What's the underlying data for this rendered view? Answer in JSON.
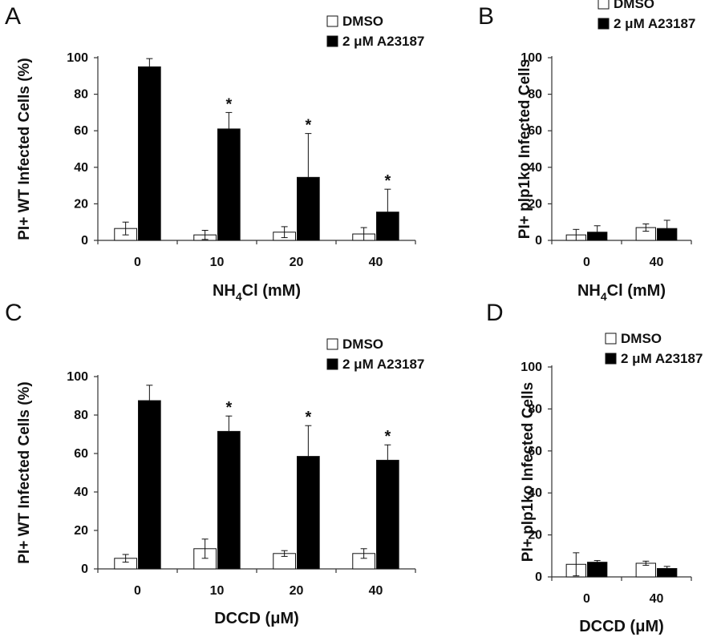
{
  "colors": {
    "dmso": "#ffffff",
    "a23187": "#000000",
    "axis": "#333333"
  },
  "chart_data": [
    {
      "panel": "A",
      "type": "bar",
      "categories": [
        "0",
        "10",
        "20",
        "40"
      ],
      "series": [
        {
          "name": "DMSO",
          "values": [
            6.5,
            3,
            4.5,
            3.5
          ],
          "errors": [
            3.5,
            2.5,
            3,
            3.5
          ]
        },
        {
          "name": "2 μM A23187",
          "values": [
            95,
            61,
            34.5,
            15.5
          ],
          "errors": [
            4.5,
            9,
            24,
            12.5
          ]
        }
      ],
      "significance": [
        "",
        "*",
        "*",
        "*"
      ],
      "xlabel_main": "NH",
      "xlabel_sub": "4",
      "xlabel_tail": "Cl (mM)",
      "ylabel": "PI+ WT Infected Cells (%)",
      "ylim": [
        0,
        100
      ],
      "yticks": [
        "0",
        "20",
        "40",
        "60",
        "80",
        "100"
      ],
      "legend": [
        "DMSO",
        "2 μM A23187"
      ],
      "legend_position": "top-right"
    },
    {
      "panel": "B",
      "type": "bar",
      "categories": [
        "0",
        "40"
      ],
      "series": [
        {
          "name": "DMSO",
          "values": [
            3,
            7
          ],
          "errors": [
            3,
            2
          ]
        },
        {
          "name": "2 μM A23187",
          "values": [
            4.5,
            6.5
          ],
          "errors": [
            3.5,
            4.5
          ]
        }
      ],
      "significance": [
        "",
        ""
      ],
      "xlabel_main": "NH",
      "xlabel_sub": "4",
      "xlabel_tail": "Cl (mM)",
      "ylabel": "PI+ plp1ko Infected Cells",
      "ylim": [
        0,
        100
      ],
      "yticks": [
        "0",
        "20",
        "40",
        "60",
        "80",
        "100"
      ],
      "legend": [
        "DMSO",
        "2 μM A23187"
      ],
      "legend_position": "top"
    },
    {
      "panel": "C",
      "type": "bar",
      "categories": [
        "0",
        "10",
        "20",
        "40"
      ],
      "series": [
        {
          "name": "DMSO",
          "values": [
            5.5,
            10.5,
            8,
            8
          ],
          "errors": [
            2,
            5,
            1.5,
            2.5
          ]
        },
        {
          "name": "2 μM A23187",
          "values": [
            87.5,
            71.5,
            58.5,
            56.5
          ],
          "errors": [
            8,
            8,
            16,
            8
          ]
        }
      ],
      "significance": [
        "",
        "*",
        "*",
        "*"
      ],
      "xlabel_main": "DCCD (μM)",
      "xlabel_sub": "",
      "xlabel_tail": "",
      "ylabel": "PI+ WT Infected Cells (%)",
      "ylim": [
        0,
        100
      ],
      "yticks": [
        "0",
        "20",
        "40",
        "60",
        "80",
        "100"
      ],
      "legend": [
        "DMSO",
        "2 μM A23187"
      ],
      "legend_position": "top-right"
    },
    {
      "panel": "D",
      "type": "bar",
      "categories": [
        "0",
        "40"
      ],
      "series": [
        {
          "name": "DMSO",
          "values": [
            6,
            6.5
          ],
          "errors": [
            5.5,
            1
          ]
        },
        {
          "name": "2 μM A23187",
          "values": [
            7,
            4
          ],
          "errors": [
            0.8,
            1
          ]
        }
      ],
      "significance": [
        "",
        ""
      ],
      "xlabel_main": "DCCD (μM)",
      "xlabel_sub": "",
      "xlabel_tail": "",
      "ylabel": "PI+ plp1ko Infected Cells",
      "ylim": [
        0,
        100
      ],
      "yticks": [
        "0",
        "20",
        "40",
        "60",
        "80",
        "100"
      ],
      "legend": [
        "DMSO",
        "2 μM A23187"
      ],
      "legend_position": "top"
    }
  ]
}
